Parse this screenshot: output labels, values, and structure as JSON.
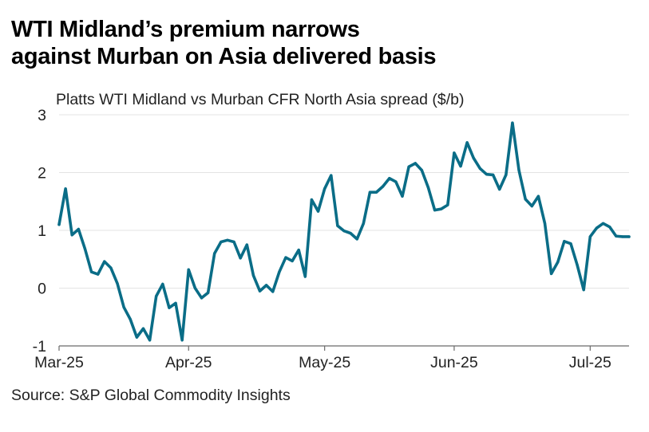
{
  "chart_data": {
    "type": "line",
    "title_lines": [
      "WTI Midland’s premium narrows",
      "against Murban on Asia delivered basis"
    ],
    "subtitle": "Platts WTI Midland vs Murban CFR North Asia spread ($/b)",
    "source": "Source: S&P Global Commodity Insights",
    "xlabel": "",
    "ylabel": "",
    "ylim": [
      -1,
      3
    ],
    "yticks": [
      -1,
      0,
      1,
      2,
      3
    ],
    "ytick_labels": [
      "-1",
      "0",
      "1",
      "2",
      "3"
    ],
    "xlim": [
      0,
      88
    ],
    "xticks": [
      {
        "label": "Mar-25",
        "x": 0
      },
      {
        "label": "Apr-25",
        "x": 20
      },
      {
        "label": "May-25",
        "x": 41
      },
      {
        "label": "Jun-25",
        "x": 61
      },
      {
        "label": "Jul-25",
        "x": 82
      }
    ],
    "grid": true,
    "color": "#0a6d87",
    "series": [
      {
        "name": "WTI Midland vs Murban CFR North Asia spread",
        "x": [
          0,
          1,
          2,
          3,
          4,
          5,
          6,
          7,
          8,
          9,
          10,
          11,
          12,
          13,
          14,
          15,
          16,
          17,
          18,
          19,
          20,
          21,
          22,
          23,
          24,
          25,
          26,
          27,
          28,
          29,
          30,
          31,
          32,
          33,
          34,
          35,
          36,
          37,
          38,
          39,
          40,
          41,
          42,
          43,
          44,
          45,
          46,
          47,
          48,
          49,
          50,
          51,
          52,
          53,
          54,
          55,
          56,
          57,
          58,
          59,
          60,
          61,
          62,
          63,
          64,
          65,
          66,
          67,
          68,
          69,
          70,
          71,
          72,
          73,
          74,
          75,
          76,
          77,
          78,
          79,
          80,
          81,
          82,
          83,
          84,
          85,
          86,
          87,
          88
        ],
        "values": [
          1.1,
          1.72,
          0.92,
          1.02,
          0.68,
          0.28,
          0.24,
          0.46,
          0.35,
          0.08,
          -0.33,
          -0.54,
          -0.85,
          -0.7,
          -0.9,
          -0.14,
          0.07,
          -0.34,
          -0.26,
          -0.9,
          0.32,
          0.0,
          -0.17,
          -0.08,
          0.6,
          0.8,
          0.83,
          0.8,
          0.52,
          0.75,
          0.22,
          -0.05,
          0.05,
          -0.06,
          0.28,
          0.53,
          0.47,
          0.66,
          0.2,
          1.53,
          1.33,
          1.72,
          1.95,
          1.08,
          0.99,
          0.95,
          0.85,
          1.12,
          1.66,
          1.66,
          1.76,
          1.9,
          1.84,
          1.59,
          2.1,
          2.16,
          2.04,
          1.74,
          1.35,
          1.37,
          1.44,
          2.34,
          2.11,
          2.52,
          2.25,
          2.07,
          1.97,
          1.96,
          1.71,
          1.96,
          2.86,
          2.04,
          1.54,
          1.42,
          1.59,
          1.12,
          0.25,
          0.45,
          0.81,
          0.77,
          0.4,
          -0.03,
          0.89,
          1.04,
          1.12,
          1.06,
          0.9,
          0.89,
          0.89
        ]
      }
    ]
  }
}
